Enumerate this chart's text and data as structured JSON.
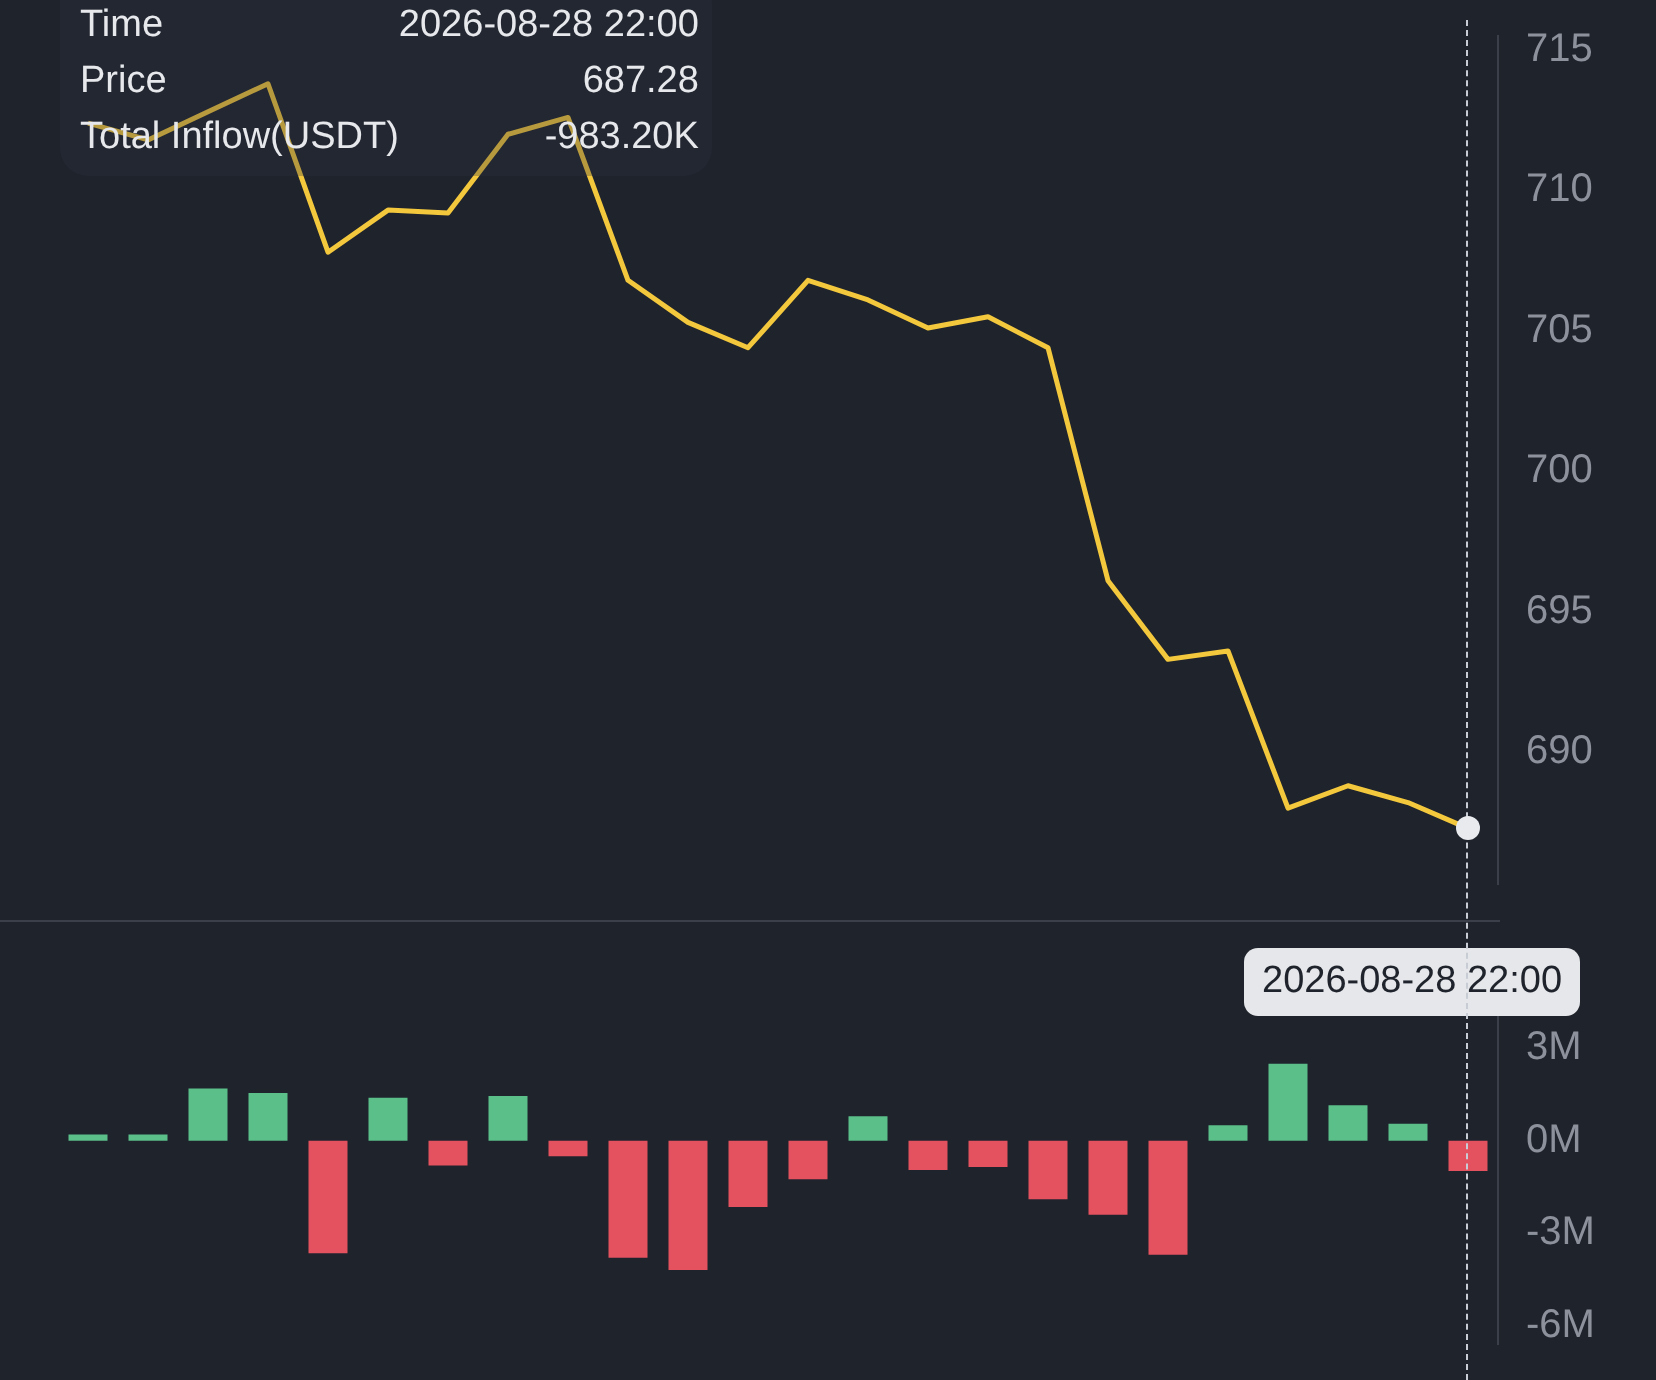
{
  "chart_data": [
    {
      "type": "line",
      "categories": [
        null,
        null,
        null,
        null,
        null,
        null,
        null,
        null,
        null,
        null,
        null,
        null,
        null,
        null,
        null,
        null,
        null,
        null,
        null,
        null,
        null,
        null,
        null,
        null
      ],
      "series": [
        {
          "color": "#f3c83d",
          "values": [
            712.4,
            711.8,
            712.8,
            713.8,
            707.8,
            709.3,
            709.2,
            712.0,
            712.6,
            706.8,
            705.3,
            704.4,
            706.8,
            706.1,
            705.1,
            705.5,
            704.4,
            696.1,
            693.3,
            693.6,
            688.0,
            688.8,
            688.2,
            687.28
          ]
        }
      ],
      "ylim": [
        685.3,
        715.5
      ],
      "yticks": [
        690,
        695,
        700,
        705,
        710,
        715
      ],
      "tick_labels": "y",
      "grid": false,
      "legend": false,
      "marker": "none",
      "line_style": "solid",
      "annotations": [
        "Time",
        "2026-08-28 22:00",
        "Price",
        "687.28",
        "Total Inflow(USDT)",
        "-983.20K"
      ]
    },
    {
      "type": "bar",
      "categories": [
        null,
        null,
        null,
        null,
        null,
        null,
        null,
        null,
        null,
        null,
        null,
        null,
        null,
        null,
        null,
        null,
        null,
        null,
        null,
        null,
        null,
        null,
        null,
        null
      ],
      "values": [
        0.2,
        0.2,
        1.7,
        1.55,
        -3.65,
        1.4,
        -0.8,
        1.45,
        -0.5,
        -3.8,
        -4.2,
        -2.15,
        -1.25,
        0.8,
        -0.95,
        -0.85,
        -1.9,
        -2.4,
        -3.7,
        0.5,
        2.5,
        1.15,
        0.55,
        -0.9832
      ],
      "colors": [
        "#5bbf8a",
        "#5bbf8a",
        "#5bbf8a",
        "#5bbf8a",
        "#e5525f",
        "#5bbf8a",
        "#e5525f",
        "#5bbf8a",
        "#e5525f",
        "#e5525f",
        "#e5525f",
        "#e5525f",
        "#e5525f",
        "#5bbf8a",
        "#e5525f",
        "#e5525f",
        "#e5525f",
        "#e5525f",
        "#e5525f",
        "#5bbf8a",
        "#5bbf8a",
        "#5bbf8a",
        "#5bbf8a",
        "#e5525f"
      ],
      "ylim": [
        -6.6,
        6
      ],
      "yticks": [
        {
          "value": -6,
          "label": "-6M"
        },
        {
          "value": -3,
          "label": "-3M"
        },
        {
          "value": 0,
          "label": "0M"
        },
        {
          "value": 3,
          "label": "3M"
        }
      ],
      "tick_labels": "y",
      "grid": false,
      "legend": false,
      "annotations": [
        "2026-08-28 22:00"
      ]
    }
  ]
}
